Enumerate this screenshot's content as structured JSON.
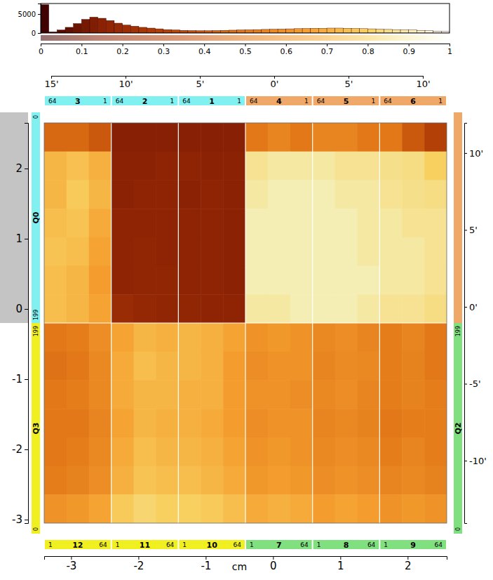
{
  "chart_data": [
    {
      "type": "histogram",
      "bins": [
        0,
        0.02,
        0.04,
        0.06,
        0.08,
        0.1,
        0.12,
        0.14,
        0.16,
        0.18,
        0.2,
        0.22,
        0.24,
        0.26,
        0.28,
        0.3,
        0.32,
        0.34,
        0.36,
        0.38,
        0.4,
        0.42,
        0.44,
        0.46,
        0.48,
        0.5,
        0.52,
        0.54,
        0.56,
        0.58,
        0.6,
        0.62,
        0.64,
        0.66,
        0.68,
        0.7,
        0.72,
        0.74,
        0.76,
        0.78,
        0.8,
        0.82,
        0.84,
        0.86,
        0.88,
        0.9,
        0.92,
        0.94,
        0.96,
        0.98,
        1
      ],
      "counts": [
        7500,
        300,
        800,
        1500,
        2500,
        3600,
        4200,
        3900,
        3300,
        2600,
        2100,
        1800,
        1500,
        1300,
        1100,
        900,
        800,
        700,
        650,
        600,
        600,
        650,
        700,
        750,
        800,
        850,
        900,
        950,
        1000,
        1050,
        1100,
        1150,
        1200,
        1250,
        1250,
        1300,
        1300,
        1250,
        1200,
        1150,
        1100,
        1000,
        950,
        900,
        850,
        800,
        700,
        600,
        500,
        400
      ],
      "xlim": [
        0,
        1
      ],
      "xticks": [
        0,
        0.1,
        0.2,
        0.3,
        0.4,
        0.5,
        0.6,
        0.7,
        0.8,
        0.9,
        1
      ],
      "ylim": [
        0,
        7800
      ],
      "yticks": [
        0,
        5000
      ]
    },
    {
      "type": "heatmap",
      "cells": [
        [
          0.45,
          0.45,
          0.4,
          0.14,
          0.14,
          0.14,
          0.14,
          0.14,
          0.14,
          0.5,
          0.55,
          0.5,
          0.55,
          0.55,
          0.5,
          0.5,
          0.4,
          0.3
        ],
        [
          0.72,
          0.75,
          0.7,
          0.15,
          0.15,
          0.16,
          0.16,
          0.15,
          0.15,
          0.86,
          0.88,
          0.88,
          0.88,
          0.86,
          0.86,
          0.85,
          0.84,
          0.8
        ],
        [
          0.72,
          0.78,
          0.72,
          0.15,
          0.16,
          0.16,
          0.15,
          0.16,
          0.15,
          0.88,
          0.9,
          0.9,
          0.9,
          0.88,
          0.88,
          0.86,
          0.85,
          0.84
        ],
        [
          0.74,
          0.76,
          0.68,
          0.16,
          0.16,
          0.16,
          0.16,
          0.16,
          0.15,
          0.9,
          0.9,
          0.9,
          0.9,
          0.9,
          0.88,
          0.88,
          0.86,
          0.86
        ],
        [
          0.76,
          0.74,
          0.66,
          0.16,
          0.17,
          0.16,
          0.16,
          0.16,
          0.15,
          0.9,
          0.9,
          0.9,
          0.9,
          0.9,
          0.88,
          0.88,
          0.88,
          0.86
        ],
        [
          0.74,
          0.72,
          0.64,
          0.16,
          0.17,
          0.17,
          0.16,
          0.16,
          0.15,
          0.9,
          0.9,
          0.9,
          0.9,
          0.9,
          0.9,
          0.88,
          0.88,
          0.86
        ],
        [
          0.74,
          0.72,
          0.66,
          0.2,
          0.18,
          0.17,
          0.17,
          0.16,
          0.16,
          0.88,
          0.88,
          0.9,
          0.9,
          0.9,
          0.88,
          0.86,
          0.86,
          0.84
        ],
        [
          0.5,
          0.52,
          0.58,
          0.66,
          0.72,
          0.7,
          0.72,
          0.7,
          0.66,
          0.6,
          0.62,
          0.6,
          0.56,
          0.58,
          0.55,
          0.52,
          0.55,
          0.5
        ],
        [
          0.48,
          0.5,
          0.56,
          0.68,
          0.74,
          0.72,
          0.72,
          0.7,
          0.64,
          0.58,
          0.6,
          0.6,
          0.55,
          0.57,
          0.56,
          0.52,
          0.54,
          0.5
        ],
        [
          0.5,
          0.52,
          0.56,
          0.68,
          0.72,
          0.72,
          0.7,
          0.7,
          0.64,
          0.6,
          0.6,
          0.58,
          0.56,
          0.58,
          0.55,
          0.52,
          0.54,
          0.52
        ],
        [
          0.5,
          0.5,
          0.55,
          0.66,
          0.72,
          0.7,
          0.7,
          0.68,
          0.64,
          0.58,
          0.6,
          0.6,
          0.55,
          0.56,
          0.54,
          0.5,
          0.52,
          0.52
        ],
        [
          0.5,
          0.52,
          0.56,
          0.68,
          0.74,
          0.72,
          0.72,
          0.7,
          0.66,
          0.6,
          0.62,
          0.6,
          0.56,
          0.58,
          0.56,
          0.52,
          0.55,
          0.52
        ],
        [
          0.52,
          0.54,
          0.58,
          0.7,
          0.76,
          0.74,
          0.74,
          0.72,
          0.68,
          0.62,
          0.64,
          0.62,
          0.58,
          0.6,
          0.58,
          0.55,
          0.56,
          0.54
        ],
        [
          0.6,
          0.62,
          0.66,
          0.78,
          0.82,
          0.8,
          0.8,
          0.78,
          0.74,
          0.68,
          0.7,
          0.68,
          0.64,
          0.66,
          0.64,
          0.6,
          0.62,
          0.6
        ]
      ],
      "color_range": [
        0,
        1
      ],
      "xlim": [
        -3.4,
        2.58
      ],
      "xticks": [
        -3,
        -2,
        -1,
        0,
        1,
        2
      ],
      "x_label": "cm",
      "ylim": [
        -3.05,
        2.65
      ],
      "yticks": [
        -3,
        -2,
        -1,
        0,
        1,
        2
      ],
      "y2lim": [
        -14.06,
        11.96
      ],
      "y2ticks": [
        {
          "value": 10,
          "label": "10'"
        },
        {
          "value": 5,
          "label": "5'"
        },
        {
          "value": 0,
          "label": "0'"
        },
        {
          "value": -5,
          "label": "-5'"
        },
        {
          "value": -10,
          "label": "-10'"
        }
      ],
      "x2_categories": [
        "15'",
        "10'",
        "5'",
        "0'",
        "5'",
        "10'"
      ],
      "ccds_top": [
        {
          "ccd": 3,
          "first": 64,
          "last": 1,
          "color": "#80f0f0"
        },
        {
          "ccd": 2,
          "first": 64,
          "last": 1,
          "color": "#80f0f0"
        },
        {
          "ccd": 1,
          "first": 64,
          "last": 1,
          "color": "#80f0f0"
        },
        {
          "ccd": 4,
          "first": 64,
          "last": 1,
          "color": "#f0a868"
        },
        {
          "ccd": 5,
          "first": 64,
          "last": 1,
          "color": "#f0a868"
        },
        {
          "ccd": 6,
          "first": 64,
          "last": 1,
          "color": "#f0a868"
        }
      ],
      "ccds_bottom": [
        {
          "ccd": 12,
          "first": 1,
          "last": 64,
          "color": "#f0f020"
        },
        {
          "ccd": 11,
          "first": 1,
          "last": 64,
          "color": "#f0f020"
        },
        {
          "ccd": 10,
          "first": 1,
          "last": 64,
          "color": "#f0f020"
        },
        {
          "ccd": 7,
          "first": 1,
          "last": 64,
          "color": "#80e080"
        },
        {
          "ccd": 8,
          "first": 1,
          "last": 64,
          "color": "#80e080"
        },
        {
          "ccd": 9,
          "first": 1,
          "last": 64,
          "color": "#80e080"
        }
      ],
      "quadrants_left": [
        {
          "name": "Q0",
          "first": 0,
          "last": 199,
          "color": "#80f0f0"
        },
        {
          "name": "Q3",
          "first": 199,
          "last": 0,
          "color": "#f0f020"
        }
      ],
      "quadrants_right": [
        {
          "color": "#f0a868"
        },
        {
          "name": "Q2",
          "first": 199,
          "last": 0,
          "color": "#80e080"
        }
      ]
    }
  ]
}
